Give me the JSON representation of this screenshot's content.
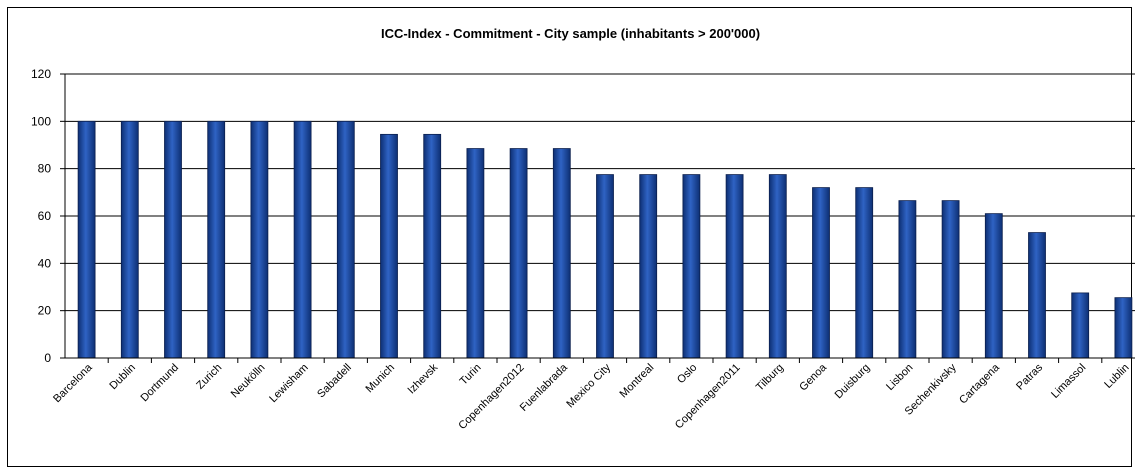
{
  "chart_data": {
    "type": "bar",
    "title": "ICC-Index - Commitment - City sample (inhabitants > 200'000)",
    "xlabel": "",
    "ylabel": "",
    "ylim": [
      0,
      120
    ],
    "yticks": [
      0,
      20,
      40,
      60,
      80,
      100,
      120
    ],
    "grid": true,
    "legend": "none",
    "bar_color": "#1f4fa8",
    "categories": [
      "Barcelona",
      "Dublin",
      "Dortmund",
      "Zurich",
      "Neukölln",
      "Lewisham",
      "Sabadell",
      "Munich",
      "Izhevsk",
      "Turin",
      "Copenhagen2012",
      "Fuenlabrada",
      "Mexico City",
      "Montreal",
      "Oslo",
      "Copenhagen2011",
      "Tilburg",
      "Genoa",
      "Duisburg",
      "Lisbon",
      "Sechenkivsky",
      "Cartagena",
      "Patras",
      "Limassol",
      "Lublin"
    ],
    "values": [
      100,
      100,
      100,
      100,
      100,
      100,
      100,
      94.5,
      94.5,
      88.5,
      88.5,
      88.5,
      77.5,
      77.5,
      77.5,
      77.5,
      77.5,
      72,
      72,
      66.5,
      66.5,
      61,
      53,
      27.5,
      25.5
    ]
  }
}
